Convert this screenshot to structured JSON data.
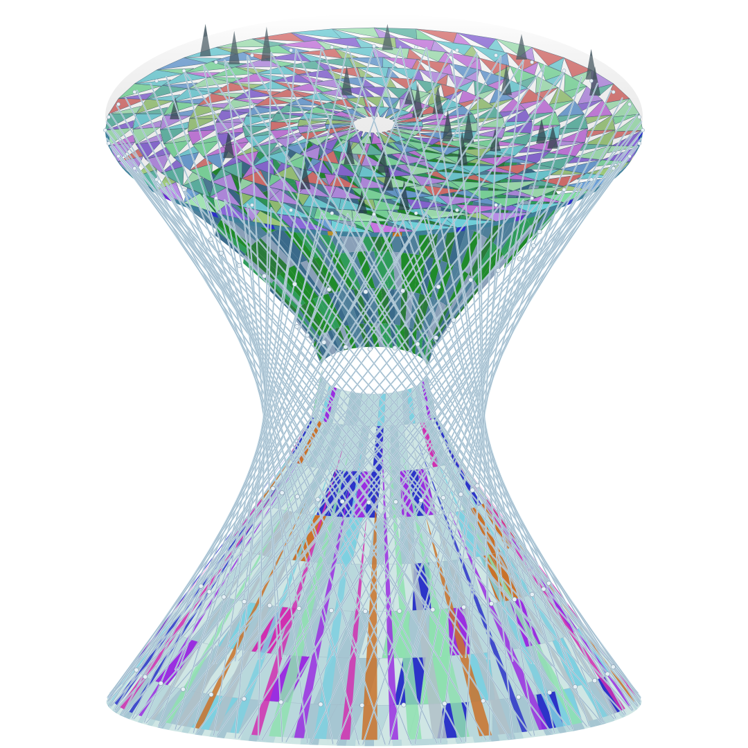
{
  "figure": {
    "subject": "hyperboloid-of-one-sheet",
    "background": "#ffffff",
    "rulings_per_family": 64,
    "rendering": "colored-triangle-facets-with-ruling-lines-and-node-spheres"
  },
  "palette": {
    "top_faces": [
      "#7fdca0",
      "#6fcfd8",
      "#9cc87a",
      "#c777e0",
      "#d9706e",
      "#8a68d8",
      "#5fb7a6",
      "#a3e3b4",
      "#6c9fd6",
      "#b78ee6"
    ],
    "bottom_faces": [
      "#b9d8dc",
      "#a6c6d2",
      "#cfe6e4",
      "#d02fb0",
      "#9a2ee0",
      "#2c34c8",
      "#c9722a",
      "#8fe0b0",
      "#7ed0e0",
      "#b0c0c8"
    ],
    "inner_faces": [
      "#1f8a2a",
      "#2f9b5a",
      "#4f7f9a",
      "#3a6a8a",
      "#8aa0b8",
      "#2a7a3a"
    ],
    "rim_colors": [
      "#2c30c8",
      "#c07020",
      "#b8902a",
      "#2a8a8a",
      "#6a2ad0"
    ],
    "ruling_line": "#c8dde8",
    "ruling_edge": "#5a7a96",
    "node": "#e6f0f6"
  }
}
